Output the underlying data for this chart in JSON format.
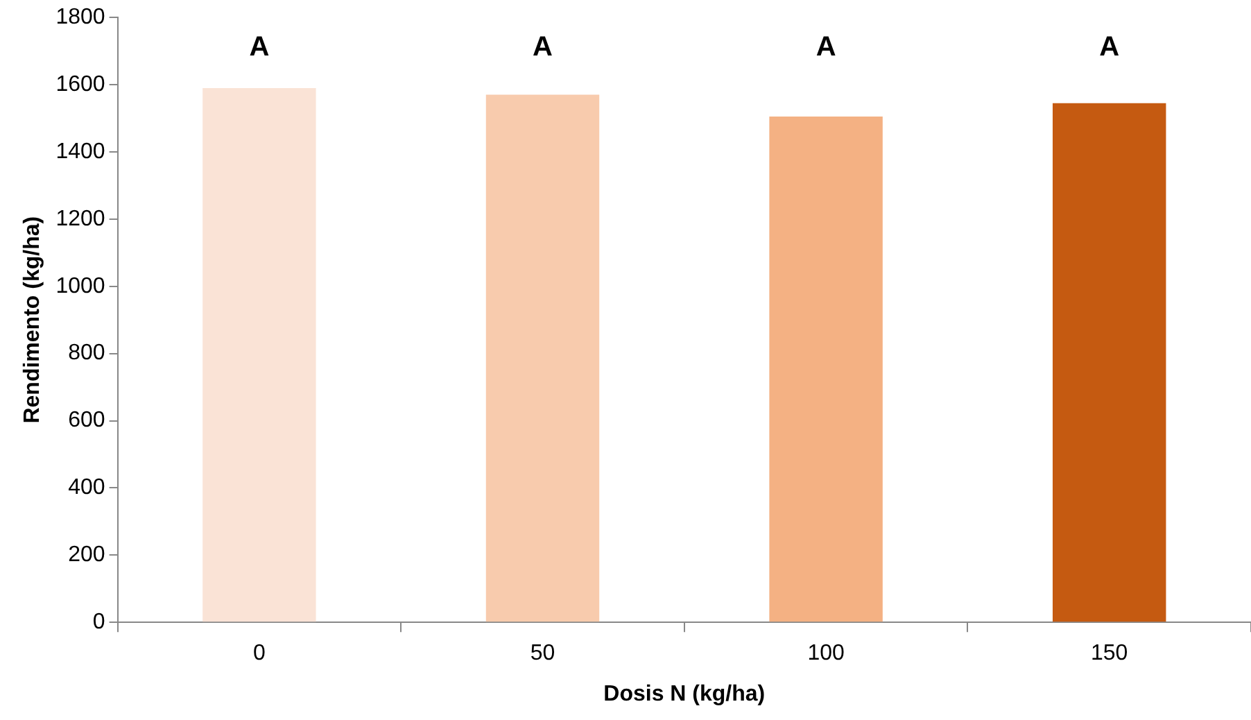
{
  "chart_data": {
    "type": "bar",
    "xlabel": "Dosis N (kg/ha)",
    "ylabel": "Rendimento (kg/ha)",
    "categories": [
      "0",
      "50",
      "100",
      "150"
    ],
    "values": [
      1590,
      1570,
      1505,
      1545
    ],
    "colors": [
      "#fae3d6",
      "#f8cbad",
      "#f4b183",
      "#c55a11"
    ],
    "ylim": [
      0,
      1800
    ],
    "yticks": [
      0,
      200,
      400,
      600,
      800,
      1000,
      1200,
      1400,
      1600,
      1800
    ],
    "grid": false,
    "legend": false,
    "annotations": [
      "A",
      "A",
      "A",
      "A"
    ]
  }
}
